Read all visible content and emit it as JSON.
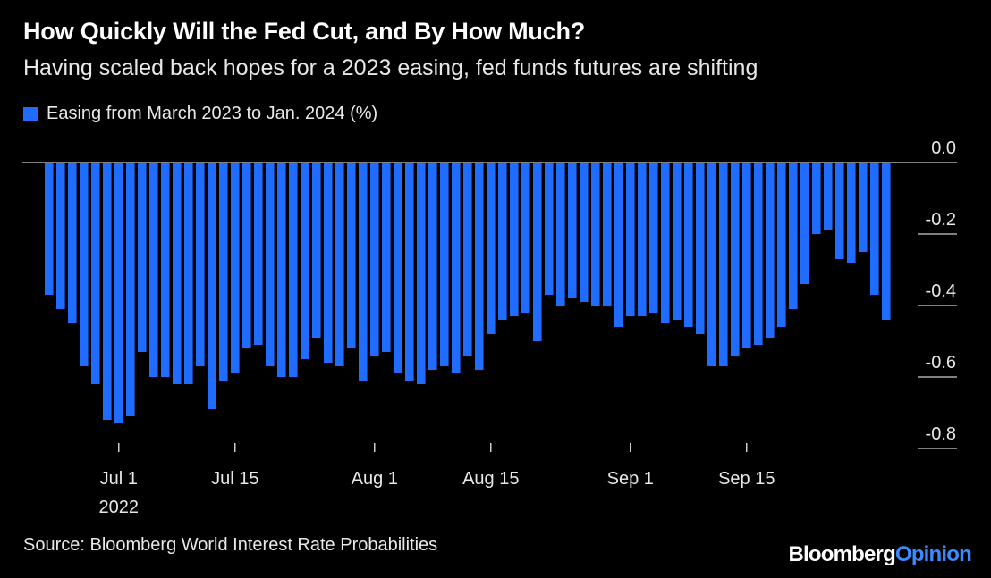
{
  "title": "How Quickly Will the Fed Cut, and By How Much?",
  "subtitle": "Having scaled back hopes for a 2023 easing, fed funds futures are shifting",
  "source": "Source: Bloomberg World Interest Rate Probabilities",
  "logo": {
    "brand": "Bloomberg",
    "product": "Opinion"
  },
  "colors": {
    "bar": "#1f6cff",
    "background": "#000000",
    "text": "#ffffff"
  },
  "chart_data": {
    "type": "bar",
    "legend": [
      "Easing from March 2023 to Jan. 2024 (%)"
    ],
    "legend_position": "top-left",
    "y_ticks": [
      {
        "value": 0,
        "label": "0.0"
      },
      {
        "value": -0.2,
        "label": "-0.2"
      },
      {
        "value": -0.4,
        "label": "-0.4"
      },
      {
        "value": -0.6,
        "label": "-0.6"
      },
      {
        "value": -0.8,
        "label": "-0.8"
      }
    ],
    "ylim": [
      -0.8,
      0
    ],
    "x_ticks": [
      {
        "index": 6,
        "label": "Jul 1",
        "sublabel": "2022"
      },
      {
        "index": 16,
        "label": "Jul 15"
      },
      {
        "index": 28,
        "label": "Aug 1"
      },
      {
        "index": 38,
        "label": "Aug 15"
      },
      {
        "index": 50,
        "label": "Sep 1"
      },
      {
        "index": 60,
        "label": "Sep 15"
      }
    ],
    "grid": false,
    "series": [
      {
        "name": "Easing from March 2023 to Jan. 2024 (%)",
        "values": [
          -0.37,
          -0.41,
          -0.45,
          -0.57,
          -0.62,
          -0.72,
          -0.73,
          -0.71,
          -0.53,
          -0.6,
          -0.6,
          -0.62,
          -0.62,
          -0.57,
          -0.69,
          -0.61,
          -0.59,
          -0.52,
          -0.51,
          -0.57,
          -0.6,
          -0.6,
          -0.55,
          -0.49,
          -0.56,
          -0.57,
          -0.52,
          -0.61,
          -0.54,
          -0.53,
          -0.59,
          -0.61,
          -0.62,
          -0.58,
          -0.57,
          -0.59,
          -0.54,
          -0.58,
          -0.48,
          -0.44,
          -0.43,
          -0.42,
          -0.5,
          -0.37,
          -0.4,
          -0.38,
          -0.39,
          -0.4,
          -0.4,
          -0.46,
          -0.43,
          -0.43,
          -0.42,
          -0.45,
          -0.44,
          -0.46,
          -0.48,
          -0.57,
          -0.57,
          -0.54,
          -0.52,
          -0.51,
          -0.49,
          -0.46,
          -0.41,
          -0.34,
          -0.2,
          -0.19,
          -0.27,
          -0.28,
          -0.25,
          -0.37,
          -0.44
        ]
      }
    ]
  }
}
